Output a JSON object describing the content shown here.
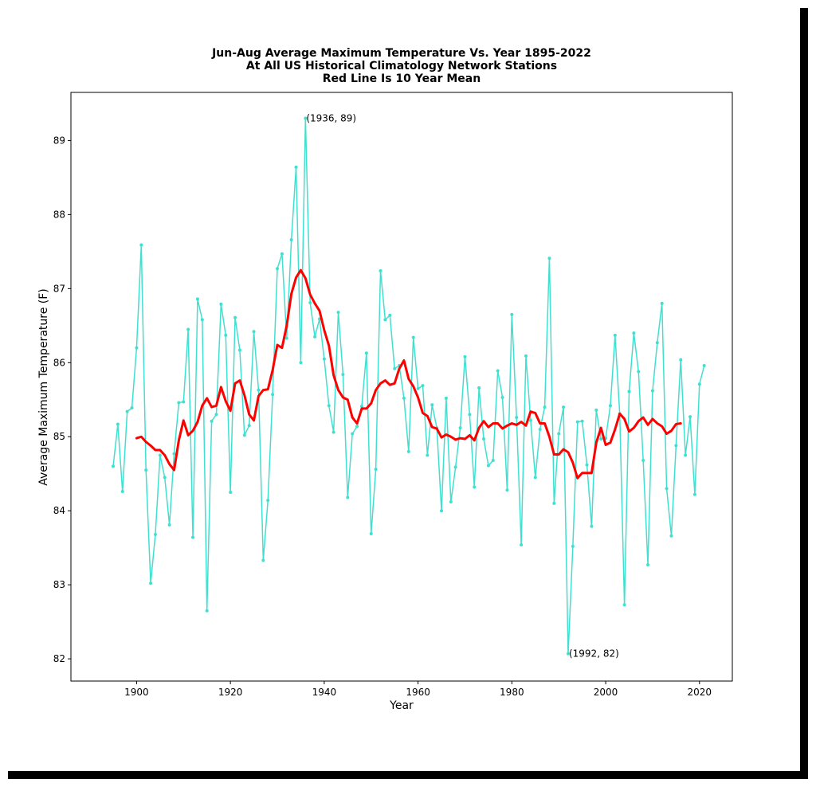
{
  "chart_data": {
    "type": "line",
    "title_lines": [
      "Jun-Aug Average Maximum Temperature Vs. Year 1895-2022",
      "At All US Historical Climatology Network Stations",
      "Red Line Is 10 Year Mean"
    ],
    "xlabel": "Year",
    "ylabel": "Average Maximum Temperature (F)",
    "xlim": [
      1886,
      2027
    ],
    "ylim": [
      81.7,
      89.65
    ],
    "xticks": [
      1900,
      1920,
      1940,
      1960,
      1980,
      2000,
      2020
    ],
    "yticks": [
      82,
      83,
      84,
      85,
      86,
      87,
      88,
      89
    ],
    "grid": false,
    "colors": {
      "annual": "#40e0d0",
      "mean": "#ff0000"
    },
    "annotations": [
      {
        "text": "(1936, 89)",
        "x": 1936,
        "y": 89.3
      },
      {
        "text": "(1992, 82)",
        "x": 1992,
        "y": 82.07
      }
    ],
    "series": [
      {
        "x_start": 1895,
        "values": [
          84.6,
          85.17,
          84.26,
          85.34,
          85.39,
          86.2,
          87.59,
          84.55,
          83.02,
          83.68,
          84.75,
          84.45,
          83.81,
          84.77,
          85.46,
          85.47,
          86.45,
          83.64,
          86.86,
          86.58,
          82.65,
          85.21,
          85.3,
          86.79,
          86.37,
          84.25,
          86.61,
          86.17,
          85.02,
          85.15,
          86.42,
          85.63,
          83.33,
          84.14,
          85.57,
          87.27,
          87.47,
          86.33,
          87.66,
          88.64,
          86.0,
          89.3,
          86.81,
          86.35,
          86.59,
          86.05,
          85.42,
          85.06,
          86.68,
          85.84,
          84.18,
          85.04,
          85.14,
          85.41,
          86.13,
          83.69,
          84.56,
          87.24,
          86.58,
          86.64,
          85.92,
          85.96,
          85.52,
          84.8,
          86.34,
          85.65,
          85.69,
          84.75,
          85.43,
          85.12,
          84.0,
          85.52,
          84.12,
          84.59,
          85.12,
          86.08,
          85.3,
          84.32,
          85.66,
          84.97,
          84.61,
          84.68,
          85.89,
          85.53,
          84.28,
          86.65,
          85.26,
          83.54,
          86.09,
          85.22,
          84.45,
          85.1,
          85.4,
          87.41,
          84.1,
          85.04,
          85.4,
          82.07,
          83.52,
          85.2,
          85.21,
          84.62,
          83.79,
          85.36,
          84.97,
          84.98,
          85.42,
          86.37,
          85.31,
          82.73,
          85.61,
          86.4,
          85.88,
          84.68,
          83.27,
          85.62,
          86.27,
          86.8,
          84.3,
          83.66,
          84.88,
          86.04,
          84.75,
          85.27,
          84.22,
          85.71,
          85.96
        ]
      },
      {
        "x_start": 1900,
        "values": [
          84.98,
          85.0,
          84.93,
          84.88,
          84.82,
          84.82,
          84.75,
          84.63,
          84.55,
          84.95,
          85.22,
          85.02,
          85.08,
          85.2,
          85.42,
          85.52,
          85.4,
          85.42,
          85.67,
          85.48,
          85.35,
          85.72,
          85.76,
          85.56,
          85.3,
          85.22,
          85.55,
          85.63,
          85.64,
          85.9,
          86.24,
          86.2,
          86.5,
          86.93,
          87.15,
          87.25,
          87.14,
          86.92,
          86.8,
          86.7,
          86.44,
          86.23,
          85.83,
          85.63,
          85.53,
          85.5,
          85.26,
          85.18,
          85.38,
          85.38,
          85.45,
          85.63,
          85.72,
          85.76,
          85.7,
          85.72,
          85.92,
          86.03,
          85.78,
          85.68,
          85.53,
          85.32,
          85.28,
          85.13,
          85.11,
          84.99,
          85.03,
          85.0,
          84.96,
          84.98,
          84.97,
          85.02,
          84.95,
          85.12,
          85.21,
          85.13,
          85.18,
          85.18,
          85.11,
          85.15,
          85.18,
          85.16,
          85.2,
          85.15,
          85.34,
          85.32,
          85.18,
          85.18,
          85.0,
          84.76,
          84.76,
          84.83,
          84.79,
          84.65,
          84.44,
          84.51,
          84.51,
          84.51,
          84.92,
          85.12,
          84.89,
          84.92,
          85.1,
          85.31,
          85.24,
          85.07,
          85.12,
          85.21,
          85.26,
          85.16,
          85.24,
          85.18,
          85.14,
          85.04,
          85.08,
          85.17,
          85.18
        ]
      }
    ]
  }
}
